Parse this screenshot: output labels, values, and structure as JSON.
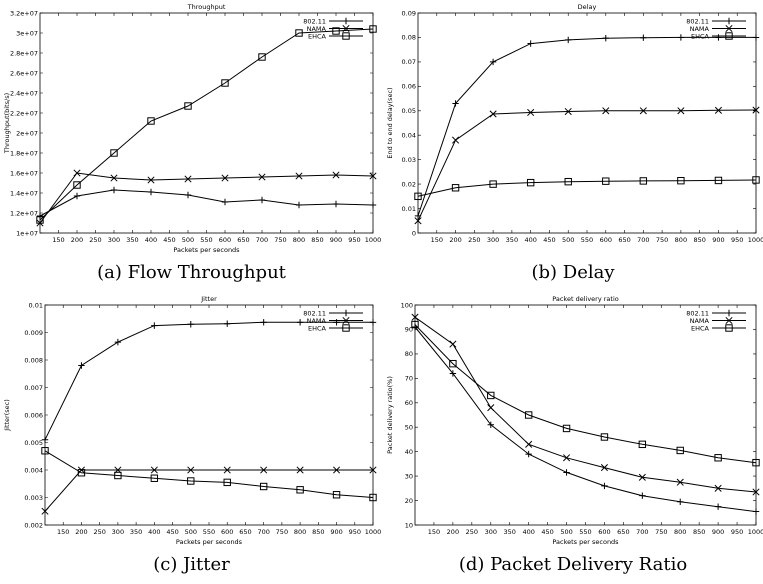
{
  "captions": {
    "a": "(a) Flow Throughput",
    "b": "(b) Delay",
    "c": "(c) Jitter",
    "d": "(d) Packet Delivery Ratio"
  },
  "chart_data": [
    {
      "type": "line",
      "title": "Throughput",
      "xlabel": "Packets per seconds",
      "ylabel": "Throughput(bits/s)",
      "x": [
        100,
        200,
        300,
        400,
        500,
        600,
        700,
        800,
        900,
        1000
      ],
      "xlim": [
        100,
        1000
      ],
      "ylim": [
        10000000,
        32000000
      ],
      "xticks": [
        150,
        200,
        250,
        300,
        350,
        400,
        450,
        500,
        550,
        600,
        650,
        700,
        750,
        800,
        850,
        900,
        950,
        1000
      ],
      "yticks": [
        10000000,
        12000000,
        14000000,
        16000000,
        18000000,
        20000000,
        22000000,
        24000000,
        26000000,
        28000000,
        30000000,
        32000000
      ],
      "ytick_labels": [
        "1e+07",
        "1.2e+07",
        "1.4e+07",
        "1.6e+07",
        "1.8e+07",
        "2e+07",
        "2.2e+07",
        "2.4e+07",
        "2.6e+07",
        "2.8e+07",
        "3e+07",
        "3.2e+07"
      ],
      "legend": "top-right",
      "series": [
        {
          "name": "802.11",
          "marker": "plus",
          "values": [
            11700000,
            13700000,
            14300000,
            14100000,
            13800000,
            13100000,
            13300000,
            12800000,
            12900000,
            12800000
          ]
        },
        {
          "name": "NAMA",
          "marker": "cross",
          "values": [
            11000000,
            16000000,
            15500000,
            15300000,
            15400000,
            15500000,
            15600000,
            15700000,
            15800000,
            15700000
          ]
        },
        {
          "name": "EHCA",
          "marker": "square",
          "values": [
            11300000,
            14800000,
            18000000,
            21200000,
            22700000,
            25000000,
            27600000,
            30000000,
            30200000,
            30400000
          ]
        }
      ]
    },
    {
      "type": "line",
      "title": "Delay",
      "xlabel": "",
      "ylabel": "End to end delay(sec)",
      "x": [
        100,
        200,
        300,
        400,
        500,
        600,
        700,
        800,
        900,
        1000
      ],
      "xlim": [
        100,
        1000
      ],
      "ylim": [
        0,
        0.09
      ],
      "xticks": [
        150,
        200,
        250,
        300,
        350,
        400,
        450,
        500,
        550,
        600,
        650,
        700,
        750,
        800,
        850,
        900,
        950,
        1000
      ],
      "yticks": [
        0,
        0.01,
        0.02,
        0.03,
        0.04,
        0.05,
        0.06,
        0.07,
        0.08,
        0.09
      ],
      "ytick_labels": [
        "0",
        "0.01",
        "0.02",
        "0.03",
        "0.04",
        "0.05",
        "0.06",
        "0.07",
        "0.08",
        "0.09"
      ],
      "legend": "top-right",
      "series": [
        {
          "name": "802.11",
          "marker": "plus",
          "values": [
            0.007,
            0.053,
            0.07,
            0.0775,
            0.079,
            0.0797,
            0.0799,
            0.08,
            0.08,
            0.08
          ]
        },
        {
          "name": "NAMA",
          "marker": "cross",
          "values": [
            0.005,
            0.038,
            0.0487,
            0.0493,
            0.0497,
            0.05,
            0.05,
            0.05,
            0.0502,
            0.0503
          ]
        },
        {
          "name": "EHCA",
          "marker": "square",
          "values": [
            0.015,
            0.0185,
            0.02,
            0.0206,
            0.021,
            0.0212,
            0.0213,
            0.0214,
            0.0215,
            0.0217
          ]
        }
      ]
    },
    {
      "type": "line",
      "title": "Jitter",
      "xlabel": "Packets per seconds",
      "ylabel": "Jitter(sec)",
      "x": [
        100,
        200,
        300,
        400,
        500,
        600,
        700,
        800,
        900,
        1000
      ],
      "xlim": [
        100,
        1000
      ],
      "ylim": [
        0.002,
        0.01
      ],
      "xticks": [
        150,
        200,
        250,
        300,
        350,
        400,
        450,
        500,
        550,
        600,
        650,
        700,
        750,
        800,
        850,
        900,
        950,
        1000
      ],
      "yticks": [
        0.002,
        0.003,
        0.004,
        0.005,
        0.006,
        0.007,
        0.008,
        0.009,
        0.01
      ],
      "ytick_labels": [
        "0.002",
        "0.003",
        "0.004",
        "0.005",
        "0.006",
        "0.007",
        "0.008",
        "0.009",
        "0.01"
      ],
      "legend": "top-right",
      "series": [
        {
          "name": "802.11",
          "marker": "plus",
          "values": [
            0.0051,
            0.0078,
            0.00865,
            0.00925,
            0.0093,
            0.00932,
            0.00937,
            0.00937,
            0.00937,
            0.00937
          ]
        },
        {
          "name": "NAMA",
          "marker": "cross",
          "values": [
            0.0025,
            0.004,
            0.004,
            0.004,
            0.004,
            0.004,
            0.004,
            0.004,
            0.004,
            0.004
          ]
        },
        {
          "name": "EHCA",
          "marker": "square",
          "values": [
            0.0047,
            0.0039,
            0.0038,
            0.0037,
            0.0036,
            0.00355,
            0.0034,
            0.00328,
            0.0031,
            0.003
          ]
        }
      ]
    },
    {
      "type": "line",
      "title": "Packet delivery ratio",
      "xlabel": "Packets per seconds",
      "ylabel": "Packet delivery ratio(%)",
      "x": [
        100,
        200,
        300,
        400,
        500,
        600,
        700,
        800,
        900,
        1000
      ],
      "xlim": [
        100,
        1000
      ],
      "ylim": [
        10,
        100
      ],
      "xticks": [
        150,
        200,
        250,
        300,
        350,
        400,
        450,
        500,
        550,
        600,
        650,
        700,
        750,
        800,
        850,
        900,
        950,
        1000
      ],
      "yticks": [
        10,
        20,
        30,
        40,
        50,
        60,
        70,
        80,
        90,
        100
      ],
      "ytick_labels": [
        "10",
        "20",
        "30",
        "40",
        "50",
        "60",
        "70",
        "80",
        "90",
        "100"
      ],
      "legend": "top-right",
      "series": [
        {
          "name": "802.11",
          "marker": "plus",
          "values": [
            91,
            72,
            51,
            39,
            31.5,
            26,
            22,
            19.5,
            17.5,
            15.5
          ]
        },
        {
          "name": "NAMA",
          "marker": "cross",
          "values": [
            95,
            84,
            58,
            43,
            37.5,
            33.5,
            29.5,
            27.5,
            25,
            23.5
          ]
        },
        {
          "name": "EHCA",
          "marker": "square",
          "values": [
            92,
            76,
            63,
            55,
            49.5,
            46,
            43,
            40.5,
            37.5,
            35.5
          ]
        }
      ]
    }
  ]
}
